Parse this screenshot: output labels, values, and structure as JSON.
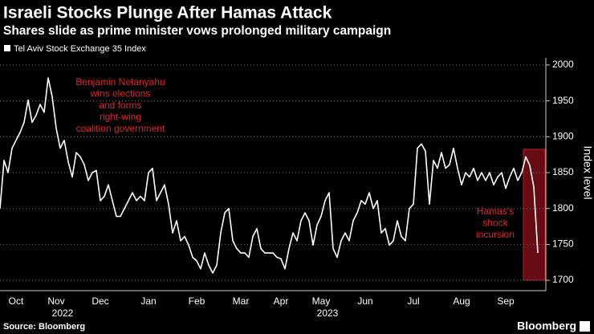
{
  "chart_data": {
    "type": "line",
    "title": "Israeli Stocks Plunge After Hamas Attack",
    "subtitle": "Shares slide as prime minister vows prolonged military campaign",
    "y_label": "Index level",
    "source": "Source: Bloomberg",
    "brand": "Bloomberg",
    "categories": [
      null,
      null,
      null,
      null,
      "Oct",
      null,
      null,
      null,
      null,
      null,
      null,
      null,
      null,
      null,
      "Nov",
      null,
      null,
      null,
      null,
      null,
      null,
      null,
      null,
      null,
      null,
      "Dec",
      null,
      null,
      null,
      null,
      null,
      null,
      null,
      null,
      null,
      null,
      null,
      "Jan",
      null,
      null,
      null,
      null,
      null,
      null,
      null,
      null,
      null,
      null,
      null,
      "Feb",
      null,
      null,
      null,
      null,
      null,
      null,
      null,
      null,
      null,
      null,
      "Mar",
      null,
      null,
      null,
      null,
      null,
      null,
      null,
      null,
      null,
      "Apr",
      null,
      null,
      null,
      null,
      null,
      null,
      null,
      null,
      null,
      "May",
      null,
      null,
      null,
      null,
      null,
      null,
      null,
      null,
      null,
      null,
      "Jun",
      null,
      null,
      null,
      null,
      null,
      null,
      null,
      null,
      null,
      null,
      null,
      "Jul",
      null,
      null,
      null,
      null,
      null,
      null,
      null,
      null,
      null,
      null,
      null,
      "Aug",
      null,
      null,
      null,
      null,
      null,
      null,
      null,
      null,
      null,
      null,
      "Sep",
      null,
      null,
      null,
      null,
      null,
      null,
      null,
      null
    ],
    "x_group_labels": [
      {
        "label": "2022",
        "at": "Nov"
      },
      {
        "label": "2023",
        "at": "May"
      }
    ],
    "series": [
      {
        "name": "Tel Aviv Stock Exchange 35 Index",
        "color": "#ffffff",
        "values": [
          1800,
          1867,
          1850,
          1884,
          1895,
          1906,
          1920,
          1951,
          1920,
          1930,
          1945,
          1934,
          1982,
          1956,
          1912,
          1884,
          1895,
          1865,
          1844,
          1878,
          1872,
          1861,
          1839,
          1850,
          1853,
          1811,
          1817,
          1833,
          1811,
          1789,
          1789,
          1800,
          1811,
          1822,
          1811,
          1817,
          1811,
          1850,
          1856,
          1811,
          1822,
          1833,
          1806,
          1766,
          1783,
          1755,
          1761,
          1749,
          1732,
          1727,
          1716,
          1738,
          1721,
          1710,
          1721,
          1766,
          1794,
          1800,
          1755,
          1744,
          1738,
          1738,
          1732,
          1761,
          1772,
          1744,
          1738,
          1738,
          1738,
          1732,
          1730,
          1716,
          1744,
          1766,
          1755,
          1783,
          1794,
          1783,
          1749,
          1777,
          1789,
          1811,
          1822,
          1744,
          1732,
          1755,
          1766,
          1755,
          1783,
          1794,
          1811,
          1806,
          1822,
          1800,
          1811,
          1766,
          1772,
          1749,
          1755,
          1783,
          1761,
          1755,
          1800,
          1806,
          1884,
          1890,
          1880,
          1806,
          1867,
          1856,
          1878,
          1856,
          1861,
          1884,
          1856,
          1833,
          1850,
          1844,
          1856,
          1839,
          1850,
          1839,
          1850,
          1833,
          1844,
          1850,
          1828,
          1844,
          1856,
          1839,
          1850,
          1872,
          1860,
          1830,
          1738
        ]
      }
    ],
    "ylim": [
      1690,
      2010
    ],
    "yticks": [
      1700,
      1750,
      1800,
      1850,
      1900,
      1950,
      2000
    ],
    "grid": true,
    "annotations": [
      {
        "color": "#e0242c",
        "lines": [
          "Benjamin Netanyahu",
          "wins elections",
          "and forms",
          "right-wing",
          "coalition government"
        ]
      },
      {
        "color": "#e0242c",
        "lines": [
          "Hamas's",
          "shock",
          "incursion"
        ]
      }
    ]
  }
}
